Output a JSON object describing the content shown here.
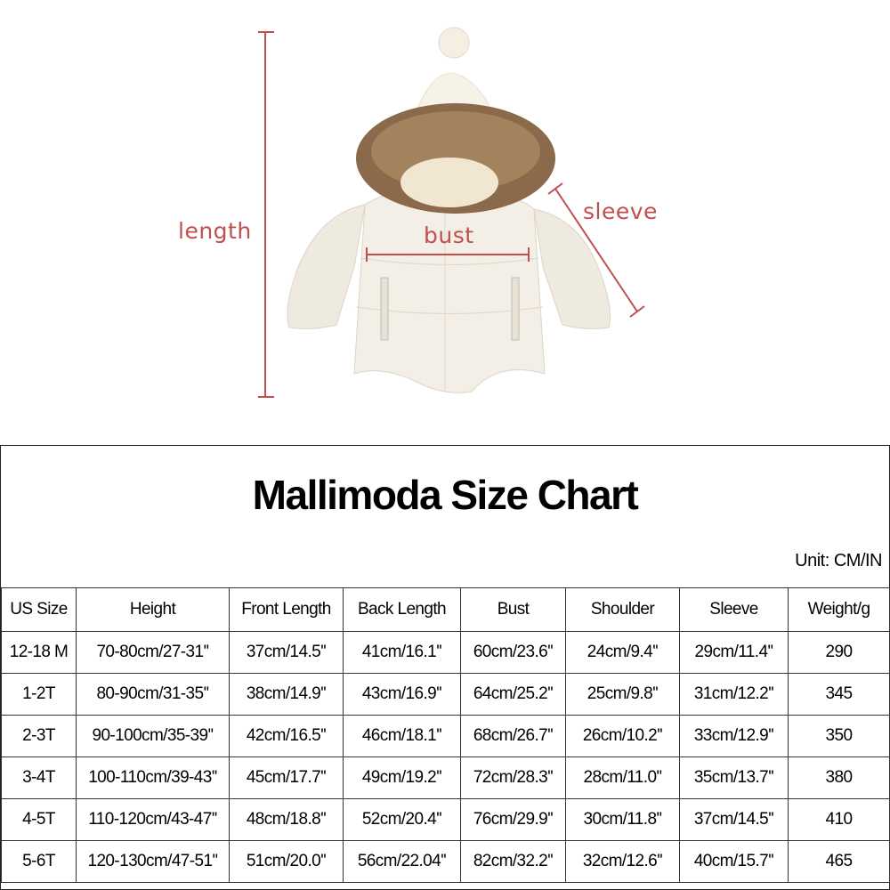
{
  "illustration": {
    "labels": {
      "length": "length",
      "bust": "bust",
      "sleeve": "sleeve"
    },
    "colors": {
      "measure_line": "#c0504d",
      "jacket": "#f3efe6",
      "fur": "#8a6a4a"
    }
  },
  "size_chart": {
    "title": "Mallimoda Size Chart",
    "unit": "Unit: CM/IN",
    "headers": [
      "US Size",
      "Height",
      "Front Length",
      "Back Length",
      "Bust",
      "Shoulder",
      "Sleeve",
      "Weight/g"
    ],
    "rows": [
      [
        "12-18 M",
        "70-80cm/27-31''",
        "37cm/14.5''",
        "41cm/16.1''",
        "60cm/23.6''",
        "24cm/9.4''",
        "29cm/11.4''",
        "290"
      ],
      [
        "1-2T",
        "80-90cm/31-35''",
        "38cm/14.9''",
        "43cm/16.9''",
        "64cm/25.2''",
        "25cm/9.8''",
        "31cm/12.2''",
        "345"
      ],
      [
        "2-3T",
        "90-100cm/35-39''",
        "42cm/16.5''",
        "46cm/18.1''",
        "68cm/26.7''",
        "26cm/10.2''",
        "33cm/12.9''",
        "350"
      ],
      [
        "3-4T",
        "100-110cm/39-43''",
        "45cm/17.7''",
        "49cm/19.2''",
        "72cm/28.3''",
        "28cm/11.0''",
        "35cm/13.7''",
        "380"
      ],
      [
        "4-5T",
        "110-120cm/43-47''",
        "48cm/18.8''",
        "52cm/20.4''",
        "76cm/29.9''",
        "30cm/11.8''",
        "37cm/14.5''",
        "410"
      ],
      [
        "5-6T",
        "120-130cm/47-51''",
        "51cm/20.0''",
        "56cm/22.04''",
        "82cm/32.2''",
        "32cm/12.6''",
        "40cm/15.7''",
        "465"
      ]
    ]
  }
}
